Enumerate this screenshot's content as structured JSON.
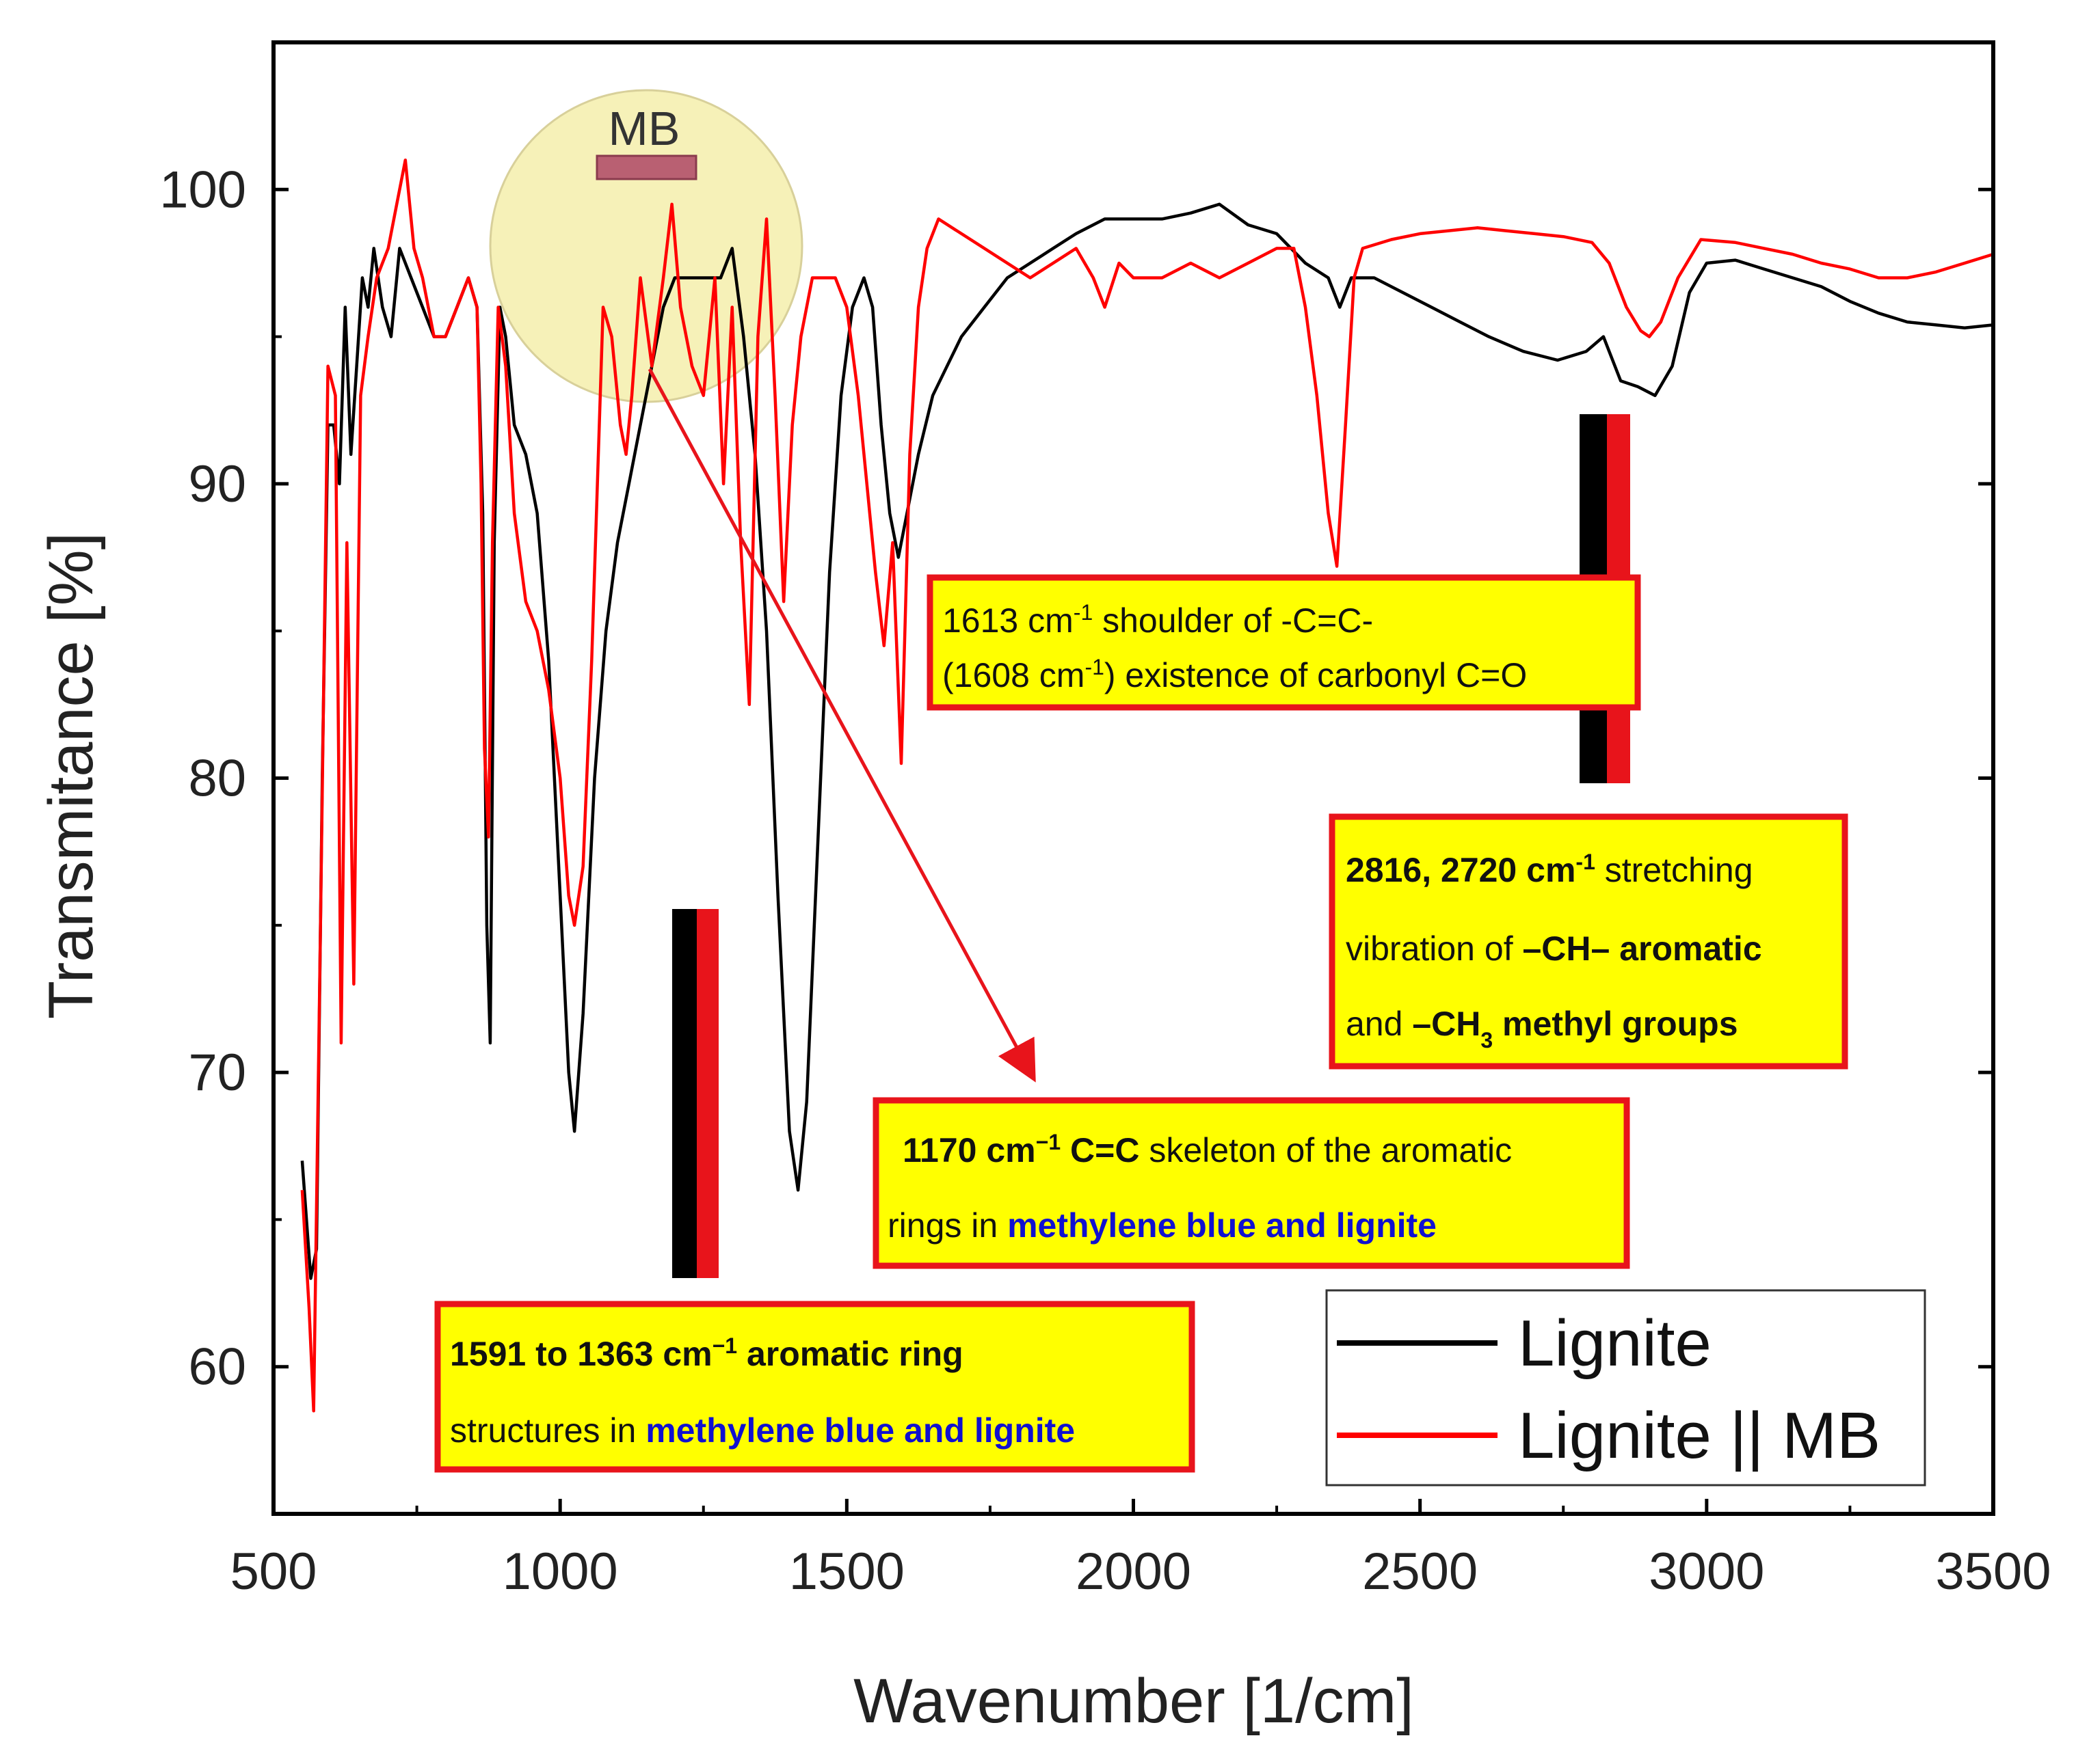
{
  "chart_data": {
    "type": "line",
    "title": "",
    "xlabel": "Wavenumber [1/cm]",
    "ylabel": "Transmitance [%]",
    "xlim": [
      500,
      3500
    ],
    "ylim": [
      55,
      105
    ],
    "x_ticks": [
      500,
      1000,
      1500,
      2000,
      2500,
      3000,
      3500
    ],
    "y_ticks": [
      60,
      70,
      80,
      90,
      100
    ],
    "grid": false,
    "legend_position": "bottom-right",
    "colors": {
      "lignite": "#000000",
      "lignite_mb": "#ff0000",
      "box_fill": "#ffff00",
      "box_border": "#e8141b",
      "blue_text": "#1010d0",
      "highlight": "#f6f1b8",
      "mb_bar": "#b96072"
    },
    "series": [
      {
        "name": "Lignite",
        "color": "#000000",
        "points": [
          [
            550,
            67
          ],
          [
            565,
            63
          ],
          [
            575,
            64
          ],
          [
            585,
            80
          ],
          [
            595,
            92
          ],
          [
            605,
            92
          ],
          [
            615,
            90
          ],
          [
            625,
            96
          ],
          [
            635,
            91
          ],
          [
            645,
            94
          ],
          [
            655,
            97
          ],
          [
            665,
            96
          ],
          [
            675,
            98
          ],
          [
            690,
            96
          ],
          [
            705,
            95
          ],
          [
            720,
            98
          ],
          [
            740,
            97
          ],
          [
            760,
            96
          ],
          [
            780,
            95
          ],
          [
            800,
            95
          ],
          [
            820,
            96
          ],
          [
            840,
            97
          ],
          [
            855,
            96
          ],
          [
            865,
            89
          ],
          [
            872,
            75
          ],
          [
            878,
            71
          ],
          [
            885,
            88
          ],
          [
            895,
            96
          ],
          [
            905,
            95
          ],
          [
            920,
            92
          ],
          [
            940,
            91
          ],
          [
            960,
            89
          ],
          [
            980,
            84
          ],
          [
            1000,
            76
          ],
          [
            1015,
            70
          ],
          [
            1025,
            68
          ],
          [
            1040,
            72
          ],
          [
            1060,
            80
          ],
          [
            1080,
            85
          ],
          [
            1100,
            88
          ],
          [
            1120,
            90
          ],
          [
            1140,
            92
          ],
          [
            1160,
            94
          ],
          [
            1180,
            96
          ],
          [
            1200,
            97
          ],
          [
            1220,
            97
          ],
          [
            1240,
            97
          ],
          [
            1260,
            97
          ],
          [
            1280,
            97
          ],
          [
            1300,
            98
          ],
          [
            1320,
            95
          ],
          [
            1340,
            91
          ],
          [
            1360,
            85
          ],
          [
            1380,
            76
          ],
          [
            1400,
            68
          ],
          [
            1415,
            66
          ],
          [
            1430,
            69
          ],
          [
            1450,
            78
          ],
          [
            1470,
            87
          ],
          [
            1490,
            93
          ],
          [
            1510,
            96
          ],
          [
            1530,
            97
          ],
          [
            1545,
            96
          ],
          [
            1560,
            92
          ],
          [
            1575,
            89
          ],
          [
            1590,
            87.5
          ],
          [
            1605,
            89
          ],
          [
            1625,
            91
          ],
          [
            1650,
            93
          ],
          [
            1675,
            94
          ],
          [
            1700,
            95
          ],
          [
            1740,
            96
          ],
          [
            1780,
            97
          ],
          [
            1820,
            97.5
          ],
          [
            1860,
            98
          ],
          [
            1900,
            98.5
          ],
          [
            1950,
            99
          ],
          [
            2000,
            99
          ],
          [
            2050,
            99
          ],
          [
            2100,
            99.2
          ],
          [
            2150,
            99.5
          ],
          [
            2200,
            98.8
          ],
          [
            2250,
            98.5
          ],
          [
            2300,
            97.5
          ],
          [
            2340,
            97
          ],
          [
            2360,
            96
          ],
          [
            2380,
            97
          ],
          [
            2420,
            97
          ],
          [
            2470,
            96.5
          ],
          [
            2520,
            96
          ],
          [
            2570,
            95.5
          ],
          [
            2620,
            95
          ],
          [
            2680,
            94.5
          ],
          [
            2740,
            94.2
          ],
          [
            2790,
            94.5
          ],
          [
            2820,
            95
          ],
          [
            2850,
            93.5
          ],
          [
            2880,
            93.3
          ],
          [
            2910,
            93
          ],
          [
            2940,
            94
          ],
          [
            2970,
            96.5
          ],
          [
            3000,
            97.5
          ],
          [
            3050,
            97.6
          ],
          [
            3100,
            97.3
          ],
          [
            3150,
            97
          ],
          [
            3200,
            96.7
          ],
          [
            3250,
            96.2
          ],
          [
            3300,
            95.8
          ],
          [
            3350,
            95.5
          ],
          [
            3400,
            95.4
          ],
          [
            3450,
            95.3
          ],
          [
            3500,
            95.4
          ]
        ]
      },
      {
        "name": "Lignite || MB",
        "color": "#ff0000",
        "points": [
          [
            550,
            66
          ],
          [
            562,
            62
          ],
          [
            570,
            58.5
          ],
          [
            582,
            75
          ],
          [
            595,
            94
          ],
          [
            608,
            93
          ],
          [
            618,
            71
          ],
          [
            628,
            88
          ],
          [
            640,
            73
          ],
          [
            652,
            93
          ],
          [
            665,
            95
          ],
          [
            680,
            97
          ],
          [
            700,
            98
          ],
          [
            715,
            99.5
          ],
          [
            730,
            101
          ],
          [
            745,
            98
          ],
          [
            760,
            97
          ],
          [
            780,
            95
          ],
          [
            800,
            95
          ],
          [
            820,
            96
          ],
          [
            840,
            97
          ],
          [
            855,
            96
          ],
          [
            862,
            90
          ],
          [
            868,
            81
          ],
          [
            875,
            78
          ],
          [
            882,
            88
          ],
          [
            892,
            96
          ],
          [
            905,
            94
          ],
          [
            920,
            89
          ],
          [
            940,
            86
          ],
          [
            960,
            85
          ],
          [
            980,
            83
          ],
          [
            1000,
            80
          ],
          [
            1015,
            76
          ],
          [
            1025,
            75
          ],
          [
            1040,
            77
          ],
          [
            1055,
            84
          ],
          [
            1075,
            96
          ],
          [
            1090,
            95
          ],
          [
            1105,
            92
          ],
          [
            1115,
            91
          ],
          [
            1125,
            93
          ],
          [
            1140,
            97
          ],
          [
            1160,
            94
          ],
          [
            1180,
            97
          ],
          [
            1195,
            99.5
          ],
          [
            1210,
            96
          ],
          [
            1230,
            94
          ],
          [
            1250,
            93
          ],
          [
            1270,
            97
          ],
          [
            1285,
            90
          ],
          [
            1300,
            96
          ],
          [
            1315,
            88
          ],
          [
            1330,
            82.5
          ],
          [
            1345,
            95
          ],
          [
            1360,
            99
          ],
          [
            1375,
            93
          ],
          [
            1390,
            86
          ],
          [
            1405,
            92
          ],
          [
            1420,
            95
          ],
          [
            1440,
            97
          ],
          [
            1460,
            97
          ],
          [
            1480,
            97
          ],
          [
            1500,
            96
          ],
          [
            1520,
            93
          ],
          [
            1535,
            90
          ],
          [
            1550,
            87
          ],
          [
            1565,
            84.5
          ],
          [
            1580,
            88
          ],
          [
            1595,
            80.5
          ],
          [
            1610,
            91
          ],
          [
            1625,
            96
          ],
          [
            1640,
            98
          ],
          [
            1660,
            99
          ],
          [
            1700,
            98.5
          ],
          [
            1740,
            98
          ],
          [
            1780,
            97.5
          ],
          [
            1820,
            97
          ],
          [
            1860,
            97.5
          ],
          [
            1900,
            98
          ],
          [
            1930,
            97
          ],
          [
            1950,
            96
          ],
          [
            1975,
            97.5
          ],
          [
            2000,
            97
          ],
          [
            2050,
            97
          ],
          [
            2100,
            97.5
          ],
          [
            2150,
            97
          ],
          [
            2200,
            97.5
          ],
          [
            2250,
            98
          ],
          [
            2280,
            98
          ],
          [
            2300,
            96
          ],
          [
            2320,
            93
          ],
          [
            2340,
            89
          ],
          [
            2355,
            87.2
          ],
          [
            2370,
            92
          ],
          [
            2385,
            97
          ],
          [
            2400,
            98
          ],
          [
            2450,
            98.3
          ],
          [
            2500,
            98.5
          ],
          [
            2550,
            98.6
          ],
          [
            2600,
            98.7
          ],
          [
            2650,
            98.6
          ],
          [
            2700,
            98.5
          ],
          [
            2750,
            98.4
          ],
          [
            2800,
            98.2
          ],
          [
            2830,
            97.5
          ],
          [
            2860,
            96
          ],
          [
            2885,
            95.2
          ],
          [
            2900,
            95
          ],
          [
            2920,
            95.5
          ],
          [
            2950,
            97
          ],
          [
            2990,
            98.3
          ],
          [
            3050,
            98.2
          ],
          [
            3100,
            98
          ],
          [
            3150,
            97.8
          ],
          [
            3200,
            97.5
          ],
          [
            3250,
            97.3
          ],
          [
            3300,
            97
          ],
          [
            3350,
            97
          ],
          [
            3400,
            97.2
          ],
          [
            3450,
            97.5
          ],
          [
            3500,
            97.8
          ]
        ]
      }
    ],
    "annotations": {
      "mb_label": "MB",
      "marker_bars": [
        {
          "x": 1240,
          "y_range": [
            63,
            75.7
          ]
        },
        {
          "x": 2830,
          "y_range": [
            80,
            92.5
          ]
        }
      ],
      "arrow": {
        "from": [
          1200,
          94
        ],
        "to": [
          1370,
          70
        ]
      },
      "boxes": [
        {
          "id": "box1613",
          "line1": [
            "1613 cm",
            "-1",
            " shoulder of -C=C-"
          ],
          "line2": [
            "(1608 cm",
            "-1",
            ")  existence of carbonyl C=O"
          ]
        },
        {
          "id": "box2816",
          "line1": [
            "2816, 2720 cm",
            "-1",
            "  stretching"
          ],
          "line2": [
            "vibration of ",
            "–CH– aromatic"
          ],
          "line3": [
            "and ",
            "–CH",
            "3",
            " methyl groups"
          ]
        },
        {
          "id": "box1170",
          "line1": [
            "1170 cm",
            "−1",
            " C=C",
            " skeleton of the aromatic"
          ],
          "line2": [
            "rings in ",
            "methylene blue and lignite"
          ]
        },
        {
          "id": "box1591",
          "line1": [
            "1591 to 1363 cm",
            "−1",
            " aromatic ring"
          ],
          "line2": [
            "structures  in ",
            "methylene blue and lignite"
          ]
        }
      ]
    },
    "legend": [
      "Lignite",
      "Lignite || MB"
    ]
  }
}
